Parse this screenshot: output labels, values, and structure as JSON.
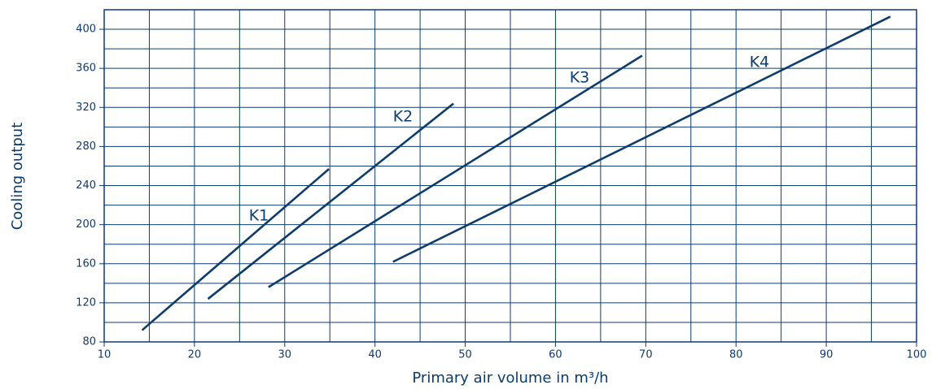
{
  "chart_data": {
    "type": "line",
    "x_label": "Primary air volume in m³/h",
    "y_label": "Cooling output",
    "series": [
      {
        "name": "K1",
        "color": "#0d3c6b",
        "x": [
          14.2,
          34.9
        ],
        "values": [
          92,
          257
        ]
      },
      {
        "name": "K2",
        "color": "#0d3c6b",
        "x": [
          21.5,
          48.7
        ],
        "values": [
          124,
          324
        ]
      },
      {
        "name": "K3",
        "color": "#0d3c6b",
        "x": [
          28.2,
          69.6
        ],
        "values": [
          136,
          373
        ]
      },
      {
        "name": "K4",
        "color": "#0d3c6b",
        "x": [
          42.0,
          97.1
        ],
        "values": [
          162,
          413
        ]
      }
    ],
    "xlim": [
      10,
      100
    ],
    "xticks": [
      10,
      20,
      30,
      40,
      50,
      60,
      70,
      80,
      90,
      100
    ],
    "ylim": [
      80,
      420
    ],
    "yticks": [
      80,
      120,
      160,
      200,
      240,
      280,
      320,
      360,
      400
    ],
    "grid": true
  }
}
